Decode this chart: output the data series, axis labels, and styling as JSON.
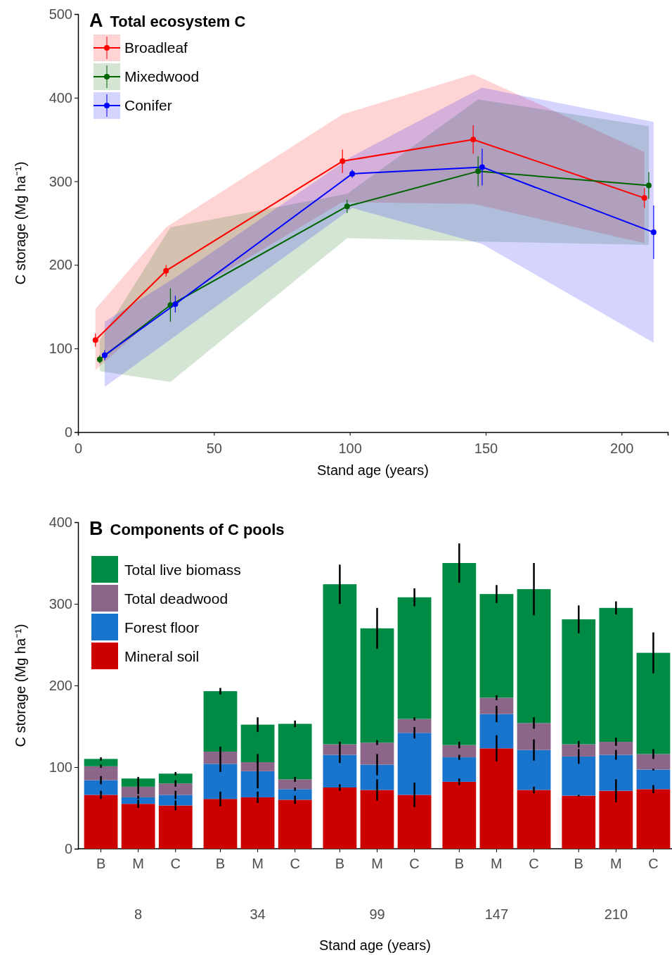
{
  "chart_data": [
    {
      "type": "line",
      "title": "A Total ecosystem C",
      "xlabel": "Stand age (years)",
      "ylabel": "C storage (Mg ha⁻¹)",
      "xlim": [
        0,
        217
      ],
      "xticks": [
        0,
        50,
        100,
        150,
        200
      ],
      "ylim": [
        0,
        500
      ],
      "yticks": [
        0,
        100,
        200,
        300,
        400,
        500
      ],
      "legend": "top left",
      "marker": "circle",
      "line_style": "solid",
      "series": [
        {
          "name": "Broadleaf",
          "color": "#ff0000",
          "x": [
            6.4,
            32.4,
            97.3,
            145.4,
            208.4
          ],
          "values": [
            110,
            193,
            324,
            350,
            280
          ],
          "errors": [
            8,
            7,
            14,
            17,
            12
          ],
          "lower": [
            74,
            150,
            275,
            273,
            226
          ],
          "upper": [
            147,
            245,
            380,
            428,
            335
          ]
        },
        {
          "name": "Mixedwood",
          "color": "#006400",
          "x": [
            8,
            34,
            99,
            147.2,
            210
          ],
          "values": [
            87,
            152,
            270,
            312,
            295
          ],
          "errors": [
            5,
            20,
            8,
            18,
            16
          ],
          "lower": [
            73,
            60,
            232,
            228,
            224
          ],
          "upper": [
            110,
            245,
            285,
            398,
            366
          ]
        },
        {
          "name": "Conifer",
          "color": "#0000ff",
          "x": [
            9.8,
            35.8,
            100.9,
            148.7,
            211.8
          ],
          "values": [
            92,
            153,
            309,
            317,
            239
          ],
          "errors": [
            6,
            10,
            5,
            22,
            32
          ],
          "lower": [
            54,
            115,
            268,
            225,
            107
          ],
          "upper": [
            132,
            185,
            330,
            412,
            371
          ]
        }
      ]
    },
    {
      "type": "bar",
      "stacked": true,
      "title": "B Components of C pools",
      "xlabel": "Stand age (years)",
      "ylabel": "C storage (Mg ha⁻¹)",
      "ylim": [
        0,
        400
      ],
      "yticks": [
        0,
        100,
        200,
        300,
        400
      ],
      "legend": "top left",
      "categories": [
        "B",
        "M",
        "C",
        "B",
        "M",
        "C",
        "B",
        "M",
        "C",
        "B",
        "M",
        "C",
        "B",
        "M",
        "C"
      ],
      "annotations": [
        "8",
        "34",
        "99",
        "147",
        "210"
      ],
      "series": [
        {
          "name": "Mineral soil",
          "color": "#cd0000",
          "values": [
            66,
            55,
            53,
            61,
            63,
            60,
            75,
            72,
            66,
            82,
            123,
            72,
            65,
            71,
            73
          ],
          "errors": [
            5,
            5,
            6,
            9,
            7,
            5,
            4,
            13,
            15,
            4,
            16,
            4,
            1,
            14,
            5
          ]
        },
        {
          "name": "Forest floor",
          "color": "#1874cd",
          "values": [
            18,
            8,
            13,
            43,
            32,
            13,
            40,
            31,
            76,
            30,
            42,
            49,
            48,
            44,
            24
          ],
          "errors": [
            5,
            2,
            5,
            10,
            21,
            2,
            10,
            13,
            7,
            3,
            10,
            13,
            9,
            6,
            1
          ]
        },
        {
          "name": "Total deadwood",
          "color": "#8b6689",
          "values": [
            17,
            13,
            14,
            15,
            11,
            12,
            13,
            27,
            17,
            15,
            20,
            33,
            15,
            16,
            19
          ],
          "errors": [
            2,
            9,
            4,
            6,
            1,
            3,
            3,
            3,
            2,
            4,
            3,
            7,
            4,
            5,
            6
          ]
        },
        {
          "name": "Total live biomass",
          "color": "#008b45",
          "values": [
            9,
            10,
            12,
            74,
            46,
            68,
            196,
            140,
            149,
            223,
            127,
            164,
            153,
            164,
            124
          ],
          "errors": [
            2,
            2,
            2,
            4,
            9,
            4,
            24,
            25,
            11,
            24,
            11,
            32,
            17,
            8,
            25
          ]
        }
      ]
    }
  ]
}
